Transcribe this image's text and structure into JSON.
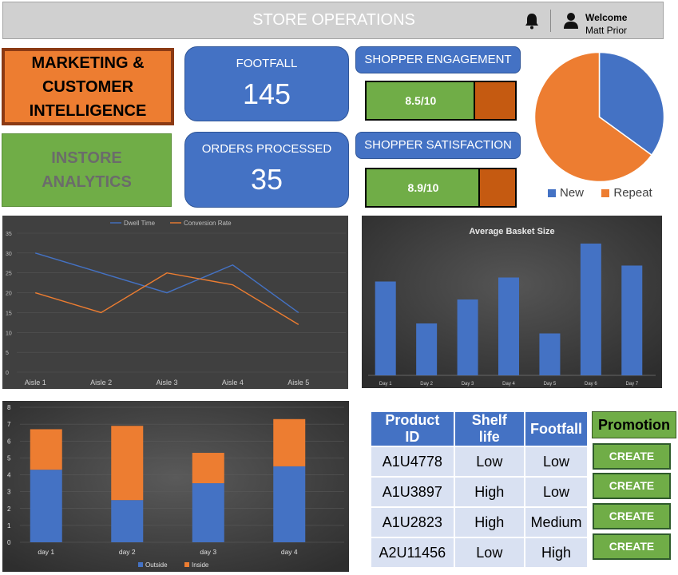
{
  "header": {
    "title": "STORE OPERATIONS",
    "welcome": "Welcome",
    "user": "Matt Prior"
  },
  "tiles": {
    "marketing": "MARKETING &\nCUSTOMER\nINTELLIGENCE",
    "instore": "INSTORE\nANALYTICS"
  },
  "kpis": {
    "footfall_label": "FOOTFALL",
    "footfall_value": "145",
    "orders_label": "ORDERS PROCESSED",
    "orders_value": "35",
    "engagement_label": "SHOPPER ENGAGEMENT",
    "engagement_value": "8.5/10",
    "engagement_score": 8.5,
    "satisfaction_label": "SHOPPER SATISFACTION",
    "satisfaction_value": "8.9/10",
    "satisfaction_score": 8.9
  },
  "colors": {
    "blue": "#4472c4",
    "orange": "#ed7d31",
    "green": "#70ad47",
    "dark_orange": "#c55a11"
  },
  "chart_data": [
    {
      "type": "pie",
      "slices": [
        {
          "name": "New",
          "value": 35,
          "color": "#4472c4"
        },
        {
          "name": "Repeat",
          "value": 65,
          "color": "#ed7d31"
        }
      ],
      "legend": "bottom"
    },
    {
      "type": "line",
      "categories": [
        "Aisle 1",
        "Aisle 2",
        "Aisle 3",
        "Aisle 4",
        "Aisle 5"
      ],
      "series": [
        {
          "name": "Dwell Time",
          "values": [
            30,
            25,
            20,
            27,
            15
          ],
          "color": "#4472c4"
        },
        {
          "name": "Conversion Rate",
          "values": [
            20,
            15,
            25,
            22,
            12
          ],
          "color": "#ed7d31"
        }
      ],
      "yticks": [
        "0",
        "5",
        "10",
        "15",
        "20",
        "25",
        "30",
        "35"
      ],
      "ylim": [
        0,
        35
      ],
      "legend": "top"
    },
    {
      "type": "bar",
      "title": "Average Basket Size",
      "categories": [
        "Day 1",
        "Day 2",
        "Day 3",
        "Day 4",
        "Day 5",
        "Day 6",
        "Day 7"
      ],
      "values": [
        23.5,
        13,
        19,
        24.5,
        10.5,
        33,
        27.5
      ],
      "ylim": [
        0,
        36
      ]
    },
    {
      "type": "bar",
      "stacked": true,
      "categories": [
        "day 1",
        "day 2",
        "day 3",
        "day 4"
      ],
      "series": [
        {
          "name": "Outside",
          "values": [
            4.3,
            2.5,
            3.5,
            4.5
          ],
          "color": "#4472c4"
        },
        {
          "name": "Inside",
          "values": [
            2.4,
            4.4,
            1.8,
            2.8
          ],
          "color": "#ed7d31"
        }
      ],
      "yticks": [
        "0",
        "1",
        "2",
        "3",
        "4",
        "5",
        "6",
        "7",
        "8"
      ],
      "ylim": [
        0,
        8
      ],
      "legend": "bottom"
    }
  ],
  "table": {
    "headers": [
      "Product ID",
      "Shelf life",
      "Footfall"
    ],
    "promotion_header": "Promotion",
    "rows": [
      [
        "A1U4778",
        "Low",
        "Low"
      ],
      [
        "A1U3897",
        "High",
        "Low"
      ],
      [
        "A1U2823",
        "High",
        "Medium"
      ],
      [
        "A2U11456",
        "Low",
        "High"
      ]
    ],
    "create_label": "CREATE"
  }
}
